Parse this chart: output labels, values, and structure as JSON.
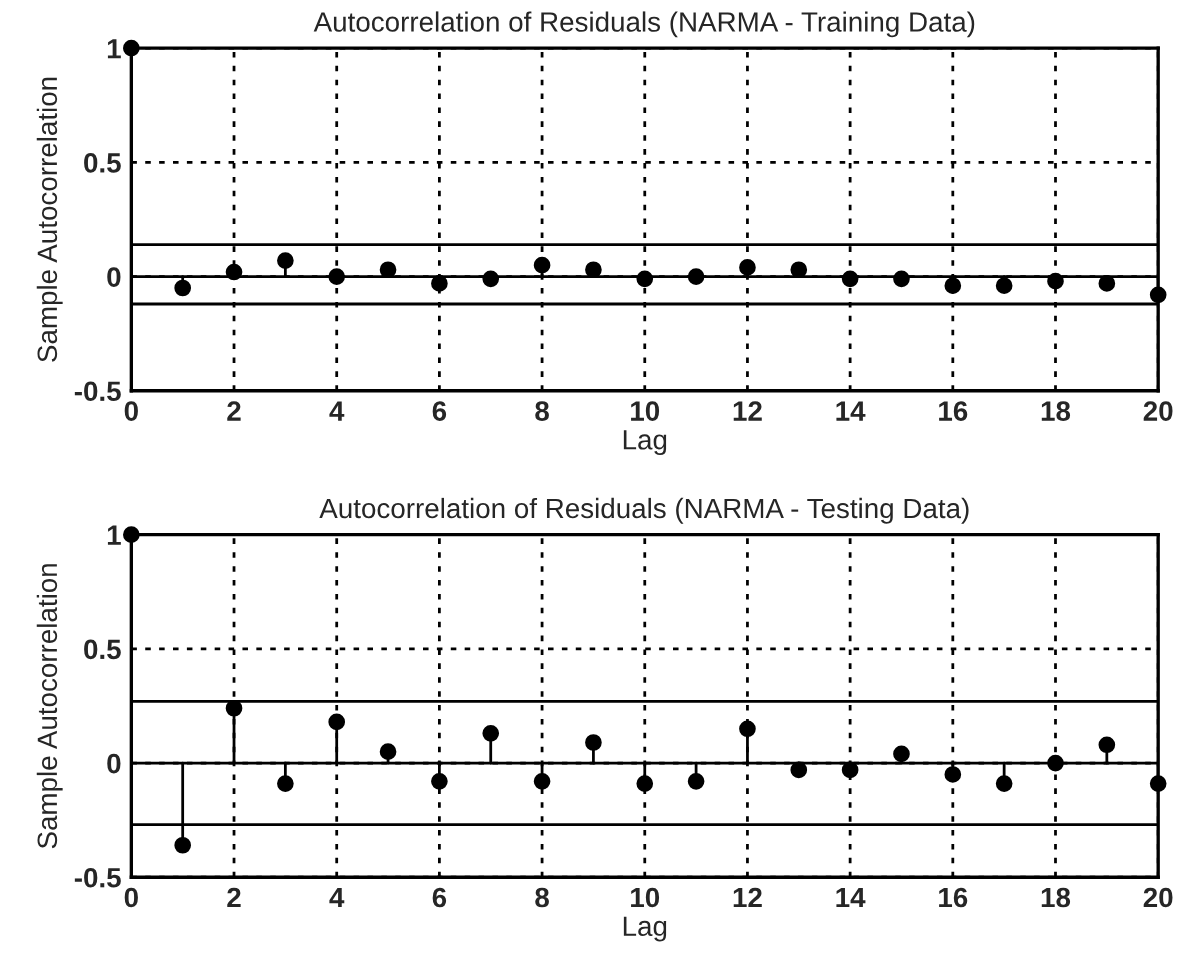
{
  "chart_data": [
    {
      "type": "lollipop",
      "title": "Autocorrelation of Residuals (NARMA - Training Data)",
      "xlabel": "Lag",
      "ylabel": "Sample Autocorrelation",
      "x": [
        0,
        1,
        2,
        3,
        4,
        5,
        6,
        7,
        8,
        9,
        10,
        11,
        12,
        13,
        14,
        15,
        16,
        17,
        18,
        19,
        20
      ],
      "series": [
        {
          "color": "#000000",
          "values": [
            1,
            -0.05,
            0.02,
            0.07,
            0.0,
            0.03,
            -0.03,
            -0.01,
            0.05,
            0.03,
            -0.01,
            0.0,
            0.04,
            0.03,
            -0.01,
            -0.01,
            -0.04,
            -0.04,
            -0.02,
            -0.03,
            -0.08
          ]
        }
      ],
      "ref_lines": [
        {
          "axis": "y",
          "value": 0.14,
          "color": "#000000",
          "line_style": "solid"
        },
        {
          "axis": "y",
          "value": -0.12,
          "color": "#000000",
          "line_style": "solid"
        }
      ],
      "xlim": [
        0,
        20
      ],
      "ylim": [
        -0.5,
        1
      ],
      "xticks": [
        0,
        2,
        4,
        6,
        8,
        10,
        12,
        14,
        16,
        18,
        20
      ],
      "yticks": [
        -0.5,
        0,
        0.5,
        1
      ],
      "grid": true,
      "marker": "circle"
    },
    {
      "type": "lollipop",
      "title": "Autocorrelation of Residuals (NARMA - Testing Data)",
      "xlabel": "Lag",
      "ylabel": "Sample Autocorrelation",
      "x": [
        0,
        1,
        2,
        3,
        4,
        5,
        6,
        7,
        8,
        9,
        10,
        11,
        12,
        13,
        14,
        15,
        16,
        17,
        18,
        19,
        20
      ],
      "series": [
        {
          "color": "#000000",
          "values": [
            1,
            -0.36,
            0.24,
            -0.09,
            0.18,
            0.05,
            -0.08,
            0.13,
            -0.08,
            0.09,
            -0.09,
            -0.08,
            0.15,
            -0.03,
            -0.03,
            0.04,
            -0.05,
            -0.09,
            0.0,
            0.08,
            -0.09
          ]
        }
      ],
      "ref_lines": [
        {
          "axis": "y",
          "value": 0.27,
          "color": "#000000",
          "line_style": "solid"
        },
        {
          "axis": "y",
          "value": -0.27,
          "color": "#000000",
          "line_style": "solid"
        }
      ],
      "xlim": [
        0,
        20
      ],
      "ylim": [
        -0.5,
        1
      ],
      "xticks": [
        0,
        2,
        4,
        6,
        8,
        10,
        12,
        14,
        16,
        18,
        20
      ],
      "yticks": [
        -0.5,
        0,
        0.5,
        1
      ],
      "grid": true,
      "marker": "circle"
    }
  ]
}
